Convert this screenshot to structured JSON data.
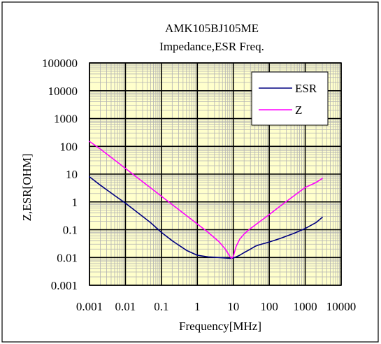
{
  "chart_data": {
    "type": "line",
    "title": "AMK105BJ105ME",
    "subtitle": "Impedance,ESR Freq.",
    "xlabel": "Frequency[MHz]",
    "ylabel": "Z,ESR[OHM]",
    "x_scale": "log",
    "y_scale": "log",
    "xlim": [
      0.001,
      10000
    ],
    "ylim": [
      0.001,
      100000
    ],
    "x_ticks": [
      0.001,
      0.01,
      0.1,
      1,
      10,
      100,
      1000,
      10000
    ],
    "x_tick_labels": [
      "0.001",
      "0.01",
      "0.1",
      "1",
      "10",
      "100",
      "1000",
      "10000"
    ],
    "y_ticks": [
      0.001,
      0.01,
      0.1,
      1,
      10,
      100,
      1000,
      10000,
      100000
    ],
    "y_tick_labels": [
      "0.001",
      "0.01",
      "0.1",
      "1",
      "10",
      "100",
      "1000",
      "10000",
      "100000"
    ],
    "grid": true,
    "legend_position": "top-right",
    "colors": {
      "plot_background": "#FFFFCC",
      "major_grid": "#000000",
      "minor_grid": "#B3B3B3",
      "esr": "#000080",
      "z": "#FF00FF"
    },
    "series": [
      {
        "name": "ESR",
        "color": "#000080",
        "x": [
          0.001,
          0.002,
          0.005,
          0.01,
          0.02,
          0.05,
          0.1,
          0.2,
          0.5,
          1,
          2,
          5,
          8,
          9,
          10,
          12,
          15,
          20,
          30,
          40,
          50,
          100,
          200,
          500,
          1000,
          2000,
          3000
        ],
        "y": [
          8,
          4,
          1.7,
          0.9,
          0.45,
          0.18,
          0.08,
          0.04,
          0.018,
          0.012,
          0.0105,
          0.0098,
          0.0093,
          0.0093,
          0.0096,
          0.0105,
          0.012,
          0.015,
          0.02,
          0.025,
          0.028,
          0.036,
          0.048,
          0.075,
          0.11,
          0.18,
          0.28
        ]
      },
      {
        "name": "Z",
        "color": "#FF00FF",
        "x": [
          0.001,
          0.002,
          0.005,
          0.01,
          0.02,
          0.05,
          0.1,
          0.2,
          0.5,
          1,
          2,
          4,
          6,
          8,
          9,
          10,
          12,
          15,
          20,
          30,
          50,
          100,
          200,
          500,
          1000,
          2000,
          3000
        ],
        "y": [
          150,
          80,
          32,
          16,
          8,
          3.2,
          1.6,
          0.8,
          0.32,
          0.16,
          0.08,
          0.037,
          0.02,
          0.011,
          0.0093,
          0.011,
          0.025,
          0.045,
          0.07,
          0.11,
          0.18,
          0.35,
          0.7,
          1.7,
          3.3,
          5,
          7
        ]
      }
    ]
  }
}
